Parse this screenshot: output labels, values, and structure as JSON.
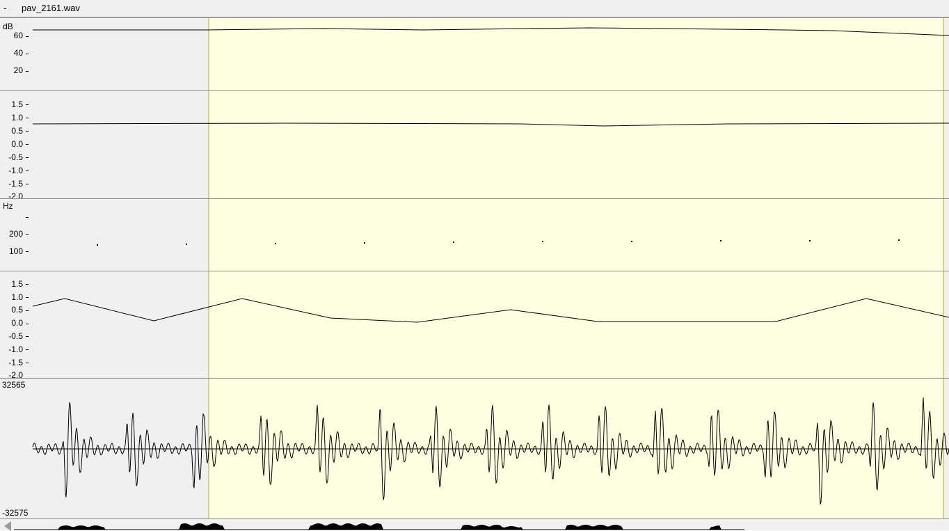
{
  "window": {
    "menu_glyph": "-",
    "file_name": "pav_2161.wav"
  },
  "colors": {
    "selection_fill": "#fefee0",
    "cursor_line": "#d4a020",
    "panel_bg": "#f0f0f0",
    "trace": "#000000"
  },
  "panels": {
    "intensity": {
      "unit": "dB",
      "ticks": [
        "60",
        "40",
        "20"
      ]
    },
    "ratio_a": {
      "unit": "",
      "ticks": [
        "1.5",
        "1.0",
        "0.5",
        "0.0",
        "-0.5",
        "-1.0",
        "-1.5",
        "-2.0"
      ]
    },
    "pitch": {
      "unit": "Hz",
      "ticks": [
        "",
        "200",
        "100"
      ]
    },
    "ratio_b": {
      "unit": "",
      "ticks": [
        "1.5",
        "1.0",
        "0.5",
        "0.0",
        "-0.5",
        "-1.0",
        "-1.5",
        "-2.0"
      ]
    },
    "waveform": {
      "max_label": "32565",
      "min_label": "-32575"
    }
  },
  "overview": {
    "scroll_icon": "scroll-left-icon"
  }
}
